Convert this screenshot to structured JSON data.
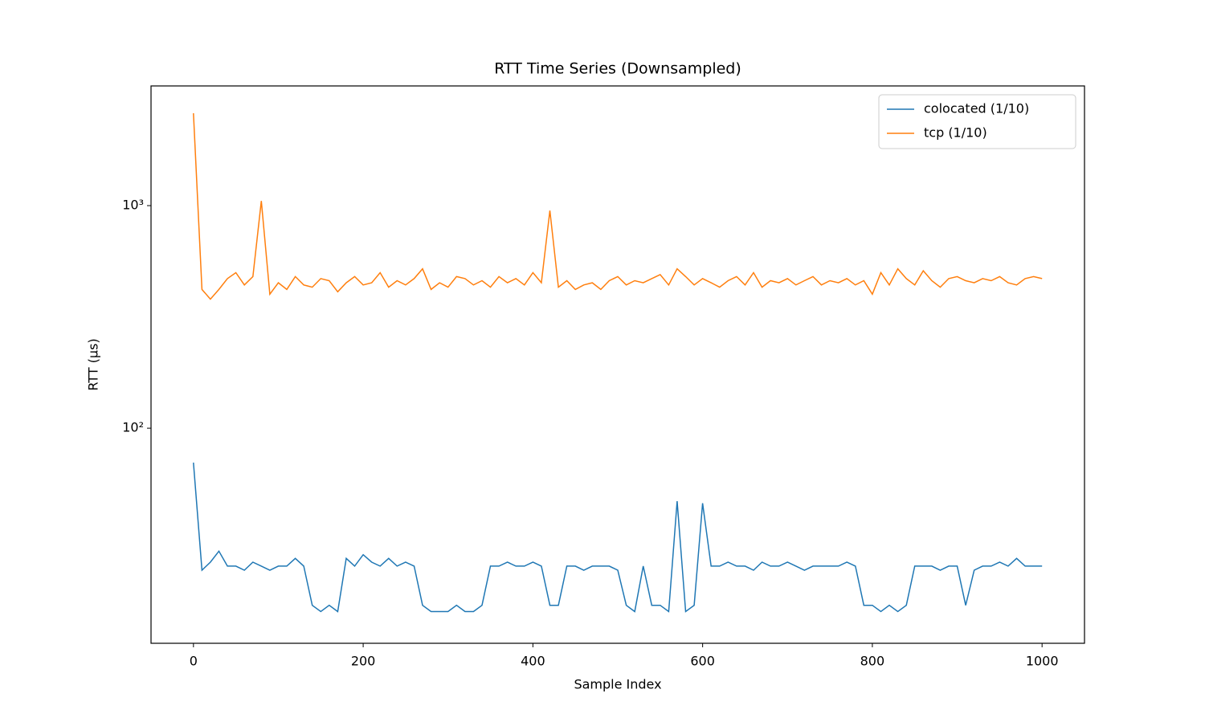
{
  "chart_data": {
    "type": "line",
    "title": "RTT Time Series (Downsampled)",
    "x_label": "Sample Index",
    "y_label": "RTT (µs)",
    "x": [
      0,
      10,
      20,
      30,
      40,
      50,
      60,
      70,
      80,
      90,
      100,
      110,
      120,
      130,
      140,
      150,
      160,
      170,
      180,
      190,
      200,
      210,
      220,
      230,
      240,
      250,
      260,
      270,
      280,
      290,
      300,
      310,
      320,
      330,
      340,
      350,
      360,
      370,
      380,
      390,
      400,
      410,
      420,
      430,
      440,
      450,
      460,
      470,
      480,
      490,
      500,
      510,
      520,
      530,
      540,
      550,
      560,
      570,
      580,
      590,
      600,
      610,
      620,
      630,
      640,
      650,
      660,
      670,
      680,
      690,
      700,
      710,
      720,
      730,
      740,
      750,
      760,
      770,
      780,
      790,
      800,
      810,
      820,
      830,
      840,
      850,
      860,
      870,
      880,
      890,
      900,
      910,
      920,
      930,
      940,
      950,
      960,
      970,
      980,
      990,
      1000
    ],
    "series": [
      {
        "name": "colocated (1/10)",
        "color": "#1f77b4",
        "values": [
          70,
          23,
          25,
          28,
          24,
          24,
          23,
          25,
          24,
          23,
          24,
          24,
          26,
          24,
          16,
          15,
          16,
          15,
          26,
          24,
          27,
          25,
          24,
          26,
          24,
          25,
          24,
          16,
          15,
          15,
          15,
          16,
          15,
          15,
          16,
          24,
          24,
          25,
          24,
          24,
          25,
          24,
          16,
          16,
          24,
          24,
          23,
          24,
          24,
          24,
          23,
          16,
          15,
          24,
          16,
          16,
          15,
          47,
          15,
          16,
          46,
          24,
          24,
          25,
          24,
          24,
          23,
          25,
          24,
          24,
          25,
          24,
          23,
          24,
          24,
          24,
          24,
          25,
          24,
          16,
          16,
          15,
          16,
          15,
          16,
          24,
          24,
          24,
          23,
          24,
          24,
          16,
          23,
          24,
          24,
          25,
          24,
          26,
          24,
          24,
          24
        ]
      },
      {
        "name": "tcp (1/10)",
        "color": "#ff7f0e",
        "values": [
          2600,
          420,
          380,
          420,
          470,
          500,
          440,
          480,
          1050,
          400,
          450,
          420,
          480,
          440,
          430,
          470,
          460,
          410,
          450,
          480,
          440,
          450,
          500,
          430,
          460,
          440,
          470,
          520,
          420,
          450,
          430,
          480,
          470,
          440,
          460,
          430,
          480,
          450,
          470,
          440,
          500,
          450,
          950,
          430,
          460,
          420,
          440,
          450,
          420,
          460,
          480,
          440,
          460,
          450,
          470,
          490,
          440,
          520,
          480,
          440,
          470,
          450,
          430,
          460,
          480,
          440,
          500,
          430,
          460,
          450,
          470,
          440,
          460,
          480,
          440,
          460,
          450,
          470,
          440,
          460,
          400,
          500,
          440,
          520,
          470,
          440,
          510,
          460,
          430,
          470,
          480,
          460,
          450,
          470,
          460,
          480,
          450,
          440,
          470,
          480,
          470
        ]
      }
    ],
    "xlim": [
      -50,
      1050
    ],
    "xticks": [
      0,
      200,
      400,
      600,
      800,
      1000
    ],
    "ylim": [
      10.8,
      3450
    ],
    "yticks": [
      {
        "value": 100,
        "label": "10²"
      },
      {
        "value": 1000,
        "label": "10³"
      }
    ],
    "log_y": true,
    "grid": false,
    "legend": "upper right"
  }
}
